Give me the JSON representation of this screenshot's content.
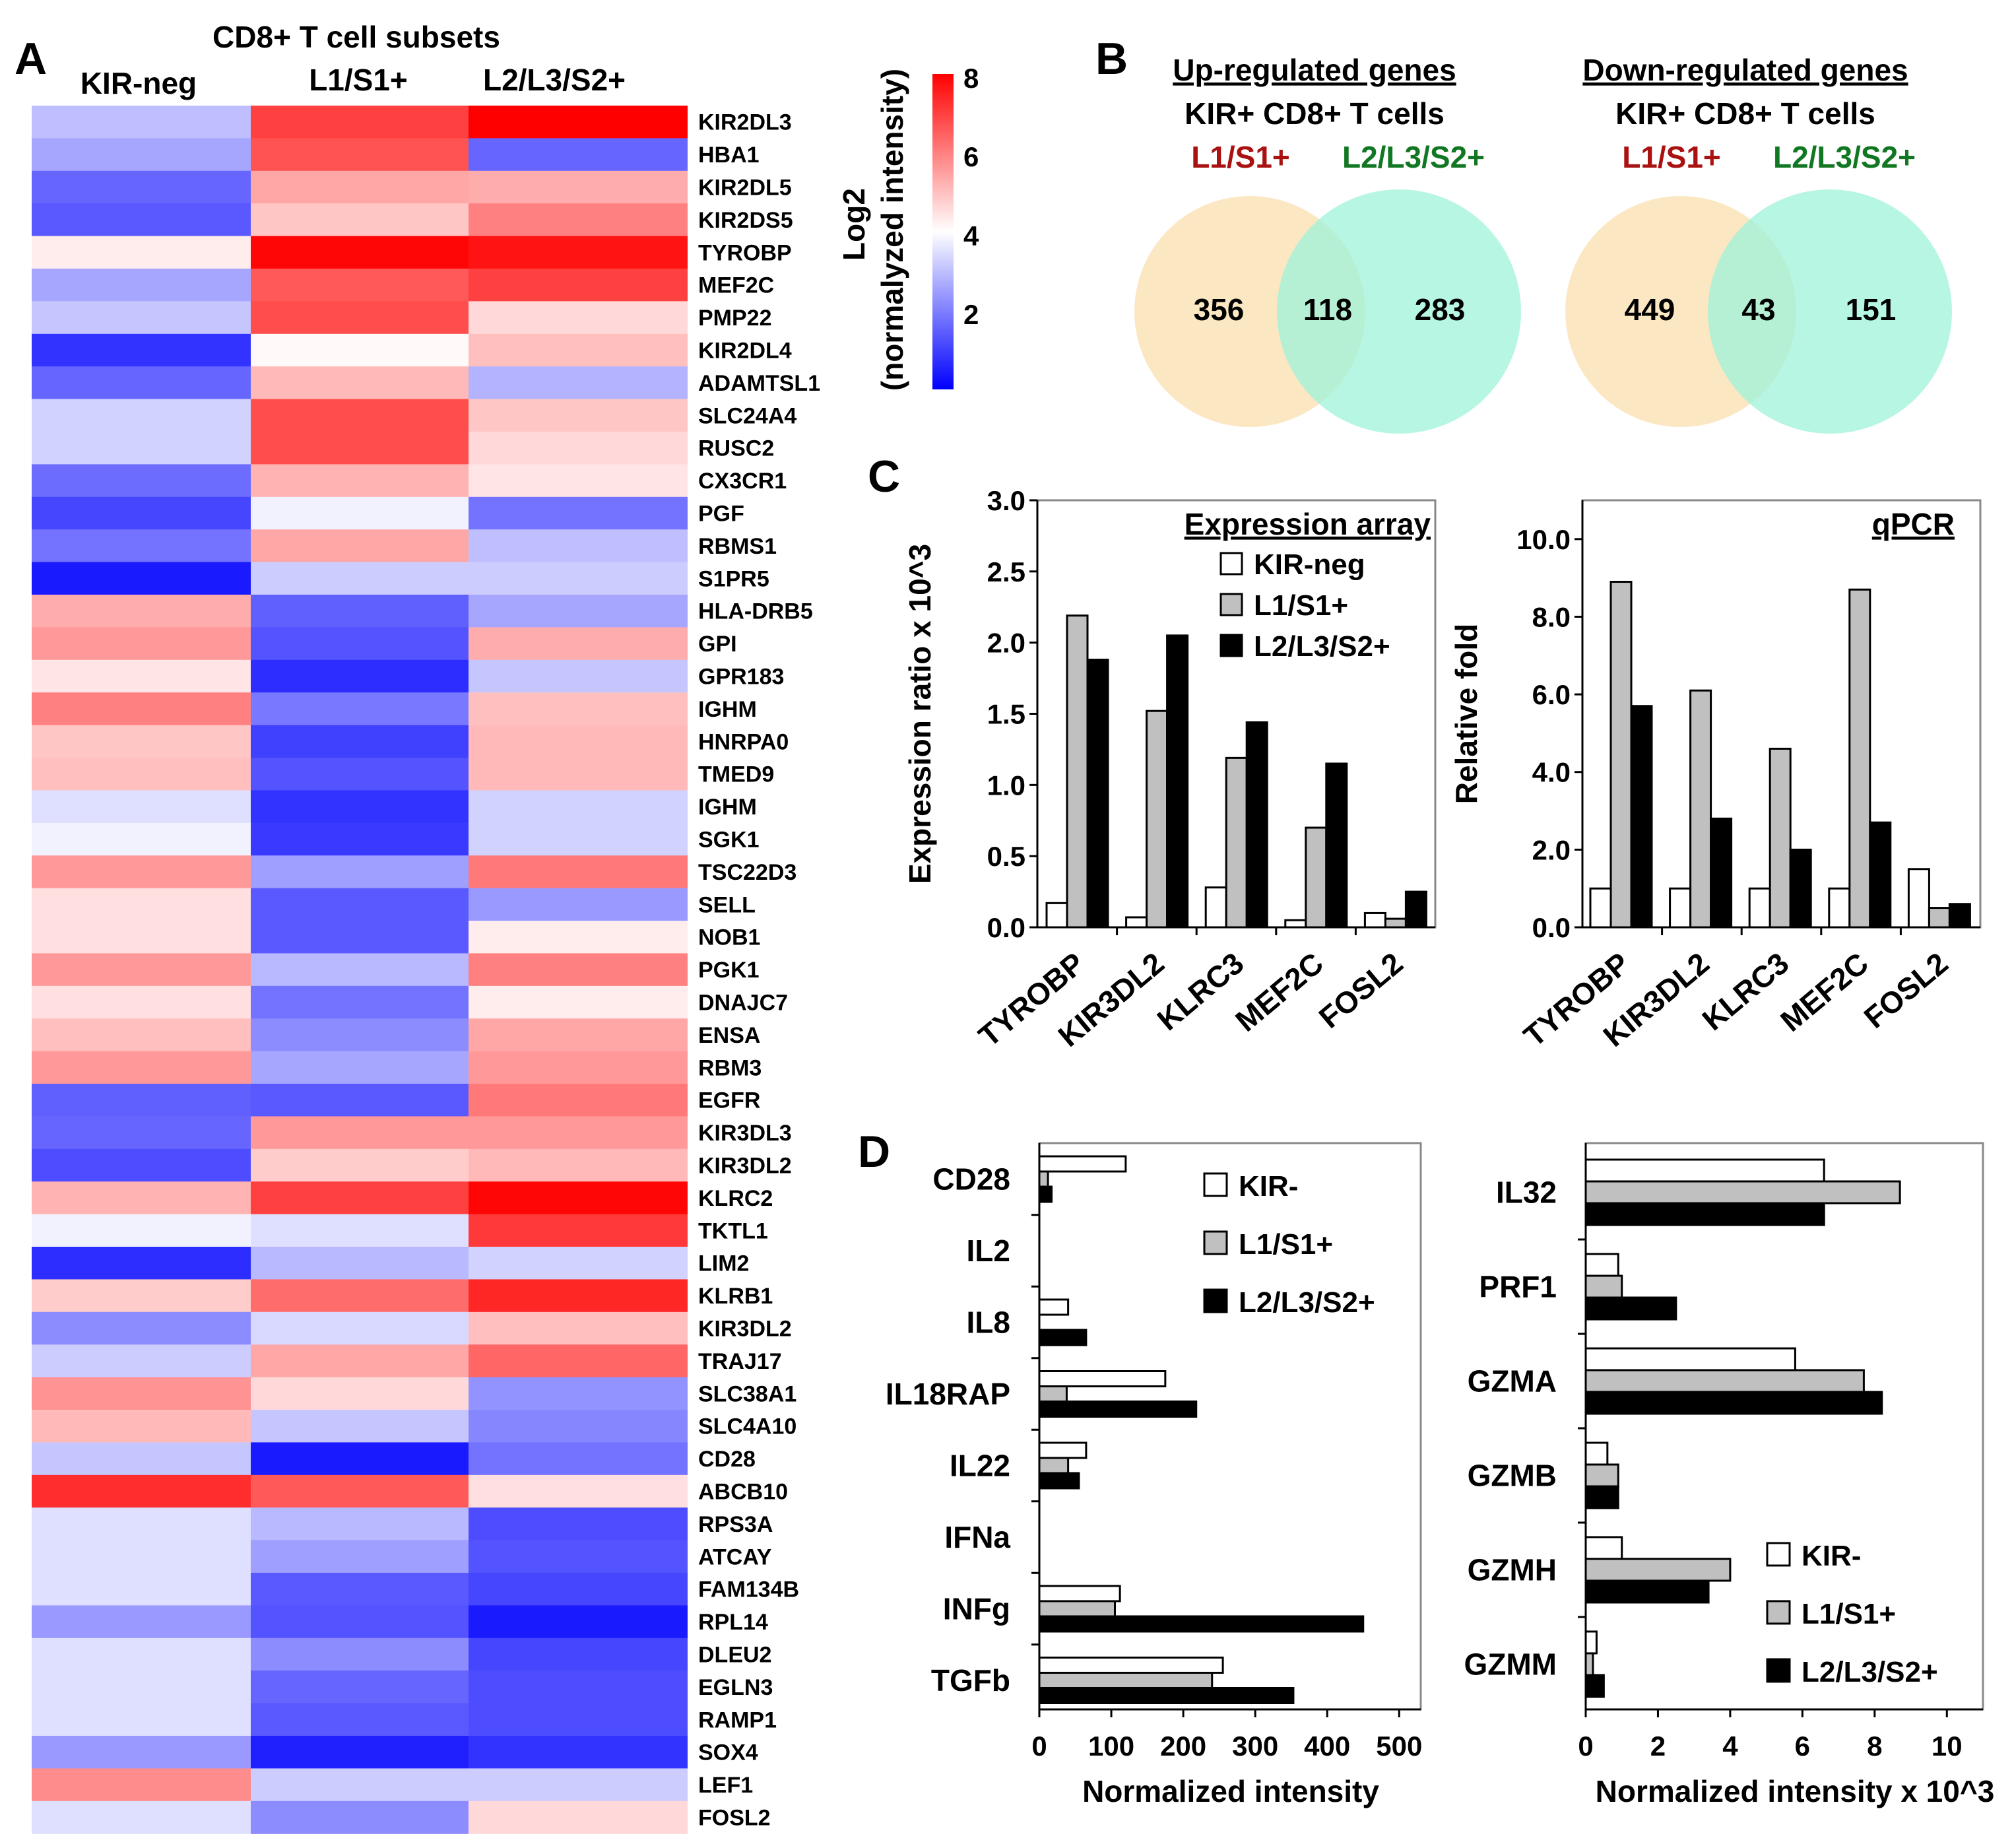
{
  "panel_labels": {
    "A": "A",
    "B": "B",
    "C": "C",
    "D": "D"
  },
  "chart_data": [
    {
      "id": "A",
      "type": "heatmap",
      "title": "CD8+ T cell subsets",
      "columns": [
        "KIR-neg",
        "L1/S1+",
        "L2/L3/S2+"
      ],
      "colorbar": {
        "label_line1": "Log2",
        "label_line2": "(normalyzed intensity)",
        "ticks": [
          "8",
          "6",
          "4",
          "2"
        ],
        "range": [
          0,
          8
        ],
        "low_color": "#0000ff",
        "mid_color": "#ffffff",
        "high_color": "#ff0000"
      },
      "rows": [
        {
          "gene": "KIR2DL3",
          "values": [
            3.0,
            7.0,
            8.0
          ]
        },
        {
          "gene": "HBA1",
          "values": [
            2.6,
            6.7,
            1.6
          ]
        },
        {
          "gene": "KIR2DL5",
          "values": [
            1.6,
            5.4,
            5.3
          ]
        },
        {
          "gene": "KIR2DS5",
          "values": [
            1.4,
            4.9,
            6.0
          ]
        },
        {
          "gene": "TYROBP",
          "values": [
            4.3,
            7.9,
            7.7
          ]
        },
        {
          "gene": "MEF2C",
          "values": [
            2.6,
            6.6,
            7.0
          ]
        },
        {
          "gene": "PMP22",
          "values": [
            3.1,
            6.8,
            4.6
          ]
        },
        {
          "gene": "KIR2DL4",
          "values": [
            0.8,
            4.1,
            5.0
          ]
        },
        {
          "gene": "ADAMTSL1",
          "values": [
            1.6,
            5.1,
            2.8
          ]
        },
        {
          "gene": "SLC24A4",
          "values": [
            3.3,
            6.8,
            4.9
          ]
        },
        {
          "gene": "RUSC2",
          "values": [
            3.3,
            6.8,
            4.6
          ]
        },
        {
          "gene": "CX3CR1",
          "values": [
            1.7,
            5.2,
            4.4
          ]
        },
        {
          "gene": "PGF",
          "values": [
            1.1,
            3.8,
            1.8
          ]
        },
        {
          "gene": "RBMS1",
          "values": [
            1.8,
            5.4,
            3.0
          ]
        },
        {
          "gene": "S1PR5",
          "values": [
            0.4,
            3.2,
            3.2
          ]
        },
        {
          "gene": "HLA-DRB5",
          "values": [
            5.3,
            1.5,
            2.6
          ]
        },
        {
          "gene": "GPI",
          "values": [
            5.6,
            1.3,
            5.3
          ]
        },
        {
          "gene": "GPR183",
          "values": [
            4.4,
            0.7,
            3.1
          ]
        },
        {
          "gene": "IGHM",
          "values": [
            6.0,
            1.9,
            5.0
          ]
        },
        {
          "gene": "HNRPA0",
          "values": [
            4.9,
            1.0,
            5.1
          ]
        },
        {
          "gene": "TMED9",
          "values": [
            5.0,
            1.3,
            5.1
          ]
        },
        {
          "gene": "IGHM",
          "values": [
            3.5,
            0.8,
            3.3
          ]
        },
        {
          "gene": "SGK1",
          "values": [
            3.8,
            0.9,
            3.3
          ]
        },
        {
          "gene": "TSC22D3",
          "values": [
            5.6,
            2.5,
            6.1
          ]
        },
        {
          "gene": "SELL",
          "values": [
            4.5,
            1.4,
            2.4
          ]
        },
        {
          "gene": "NOB1",
          "values": [
            4.5,
            1.4,
            4.3
          ]
        },
        {
          "gene": "PGK1",
          "values": [
            5.6,
            2.9,
            6.0
          ]
        },
        {
          "gene": "DNAJC7",
          "values": [
            4.5,
            1.8,
            4.3
          ]
        },
        {
          "gene": "ENSA",
          "values": [
            5.0,
            2.2,
            5.4
          ]
        },
        {
          "gene": "RBM3",
          "values": [
            5.6,
            2.6,
            5.6
          ]
        },
        {
          "gene": "EGFR",
          "values": [
            1.5,
            1.4,
            6.1
          ]
        },
        {
          "gene": "KIR3DL3",
          "values": [
            1.6,
            5.6,
            5.6
          ]
        },
        {
          "gene": "KIR3DL2",
          "values": [
            1.2,
            4.8,
            5.1
          ]
        },
        {
          "gene": "KLRC2",
          "values": [
            5.2,
            7.0,
            7.9
          ]
        },
        {
          "gene": "TKTL1",
          "values": [
            3.8,
            3.5,
            7.1
          ]
        },
        {
          "gene": "LIM2",
          "values": [
            0.7,
            2.9,
            3.3
          ]
        },
        {
          "gene": "KLRB1",
          "values": [
            4.8,
            6.3,
            7.4
          ]
        },
        {
          "gene": "KIR3DL2",
          "values": [
            2.2,
            3.4,
            5.0
          ]
        },
        {
          "gene": "TRAJ17",
          "values": [
            3.2,
            5.4,
            6.4
          ]
        },
        {
          "gene": "SLC38A1",
          "values": [
            5.7,
            4.6,
            2.3
          ]
        },
        {
          "gene": "SLC4A10",
          "values": [
            5.1,
            3.1,
            2.1
          ]
        },
        {
          "gene": "CD28",
          "values": [
            3.1,
            0.4,
            1.8
          ]
        },
        {
          "gene": "ABCB10",
          "values": [
            7.3,
            6.6,
            4.5
          ]
        },
        {
          "gene": "RPS3A",
          "values": [
            3.5,
            2.9,
            1.2
          ]
        },
        {
          "gene": "ATCAY",
          "values": [
            3.5,
            2.5,
            1.3
          ]
        },
        {
          "gene": "FAM134B",
          "values": [
            3.5,
            1.4,
            1.1
          ]
        },
        {
          "gene": "RPL14",
          "values": [
            2.4,
            1.3,
            0.4
          ]
        },
        {
          "gene": "DLEU2",
          "values": [
            3.5,
            2.2,
            1.1
          ]
        },
        {
          "gene": "EGLN3",
          "values": [
            3.5,
            1.6,
            1.2
          ]
        },
        {
          "gene": "RAMP1",
          "values": [
            3.5,
            1.4,
            1.2
          ]
        },
        {
          "gene": "SOX4",
          "values": [
            2.4,
            0.5,
            0.8
          ]
        },
        {
          "gene": "LEF1",
          "values": [
            5.8,
            3.2,
            3.2
          ]
        },
        {
          "gene": "FOSL2",
          "values": [
            3.5,
            2.2,
            4.6
          ]
        }
      ]
    },
    {
      "id": "B",
      "type": "venn",
      "header_line2": "KIR+ CD8+ T cells",
      "set_labels": [
        "L1/S1+",
        "L2/L3/S2+"
      ],
      "set_colors": [
        "#aa1111",
        "#117722"
      ],
      "diagrams": [
        {
          "title": "Up-regulated genes",
          "left_only": 356,
          "overlap": 118,
          "right_only": 283
        },
        {
          "title": "Down-regulated genes",
          "left_only": 449,
          "overlap": 43,
          "right_only": 151
        }
      ]
    },
    {
      "id": "C1",
      "type": "bar",
      "title": "Expression array",
      "ylabel": "Expression ratio x 10^3",
      "ylim": [
        0,
        3.0
      ],
      "yticks": [
        "0.0",
        "0.5",
        "1.0",
        "1.5",
        "2.0",
        "2.5",
        "3.0"
      ],
      "categories": [
        "TYROBP",
        "KIR3DL2",
        "KLRC3",
        "MEF2C",
        "FOSL2"
      ],
      "legend": [
        "KIR-neg",
        "L1/S1+",
        "L2/L3/S2+"
      ],
      "series": [
        {
          "name": "KIR-neg",
          "values": [
            0.17,
            0.07,
            0.28,
            0.05,
            0.1
          ]
        },
        {
          "name": "L1/S1+",
          "values": [
            2.19,
            1.52,
            1.19,
            0.7,
            0.06
          ]
        },
        {
          "name": "L2/L3/S2+",
          "values": [
            1.88,
            2.05,
            1.44,
            1.15,
            0.25
          ]
        }
      ]
    },
    {
      "id": "C2",
      "type": "bar",
      "title": "qPCR",
      "ylabel": "Relative fold",
      "ylim": [
        0,
        11
      ],
      "yticks": [
        "0.0",
        "2.0",
        "4.0",
        "6.0",
        "8.0",
        "10.0"
      ],
      "categories": [
        "TYROBP",
        "KIR3DL2",
        "KLRC3",
        "MEF2C",
        "FOSL2"
      ],
      "series": [
        {
          "name": "KIR-neg",
          "values": [
            1.0,
            1.0,
            1.0,
            1.0,
            1.5
          ]
        },
        {
          "name": "L1/S1+",
          "values": [
            8.9,
            6.1,
            4.6,
            8.7,
            0.5
          ]
        },
        {
          "name": "L2/L3/S2+",
          "values": [
            5.7,
            2.8,
            2.0,
            2.7,
            0.6
          ]
        }
      ]
    },
    {
      "id": "D1",
      "type": "bar",
      "orientation": "horizontal",
      "xlabel": "Normalized intensity",
      "xlim": [
        0,
        530
      ],
      "xticks": [
        "0",
        "100",
        "200",
        "300",
        "400",
        "500"
      ],
      "categories": [
        "CD28",
        "IL2",
        "IL8",
        "IL18RAP",
        "IL22",
        "IFNa",
        "INFg",
        "TGFb"
      ],
      "legend": [
        "KIR-",
        "L1/S1+",
        "L2/L3/S2+"
      ],
      "series": [
        {
          "name": "KIR-",
          "values": [
            120,
            0,
            40,
            175,
            65,
            0,
            112,
            255
          ]
        },
        {
          "name": "L1/S1+",
          "values": [
            12,
            0,
            0,
            38,
            40,
            0,
            105,
            240
          ]
        },
        {
          "name": "L2/L3/S2+",
          "values": [
            17,
            0,
            65,
            218,
            55,
            0,
            450,
            353
          ]
        }
      ]
    },
    {
      "id": "D2",
      "type": "bar",
      "orientation": "horizontal",
      "xlabel": "Normalized intensity x 10^3",
      "xlim": [
        0,
        11
      ],
      "xticks": [
        "0",
        "2",
        "4",
        "6",
        "8",
        "10"
      ],
      "categories": [
        "IL32",
        "PRF1",
        "GZMA",
        "GZMB",
        "GZMH",
        "GZMM"
      ],
      "legend": [
        "KIR-",
        "L1/S1+",
        "L2/L3/S2+"
      ],
      "series": [
        {
          "name": "KIR-",
          "values": [
            6.6,
            0.9,
            5.8,
            0.6,
            1.0,
            0.3
          ]
        },
        {
          "name": "L1/S1+",
          "values": [
            8.7,
            1.0,
            7.7,
            0.9,
            4.0,
            0.2
          ]
        },
        {
          "name": "L2/L3/S2+",
          "values": [
            6.6,
            2.5,
            8.2,
            0.9,
            3.4,
            0.5
          ]
        }
      ]
    }
  ],
  "colors": {
    "white_fill": "#ffffff",
    "grey_fill": "#c0c0c0",
    "black_fill": "#000000",
    "venn_left": "#fbe3b8",
    "venn_right": "#9ff3da"
  }
}
